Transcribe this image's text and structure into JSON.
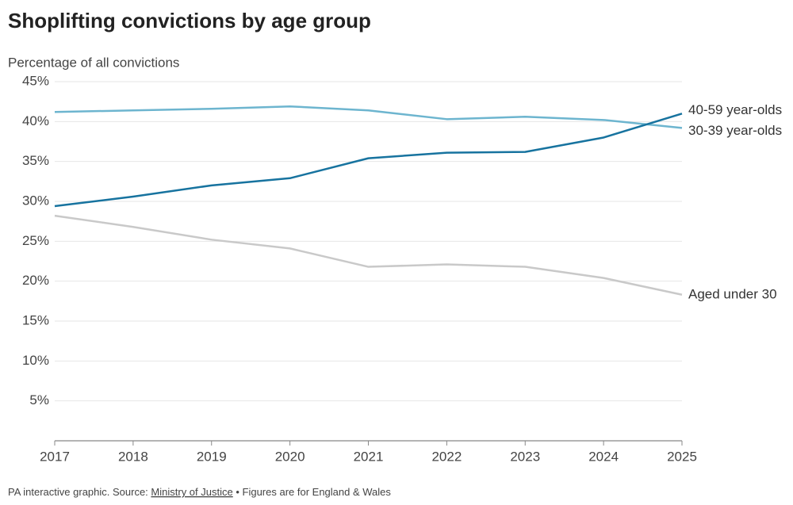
{
  "chart_data": {
    "type": "line",
    "title": "Shoplifting convictions by age group",
    "y_label": "Percentage of all convictions",
    "categories": [
      "2017",
      "2018",
      "2019",
      "2020",
      "2021",
      "2022",
      "2023",
      "2024",
      "2025"
    ],
    "series": [
      {
        "name": "30-39 year-olds",
        "color": "#6db5cf",
        "values": [
          41.2,
          41.4,
          41.6,
          41.9,
          41.4,
          40.3,
          40.6,
          40.2,
          39.2
        ]
      },
      {
        "name": "40-59 year-olds",
        "color": "#17739f",
        "values": [
          29.4,
          30.6,
          32.0,
          32.9,
          35.4,
          36.1,
          36.2,
          38.0,
          41.0
        ]
      },
      {
        "name": "Aged under 30",
        "color": "#c9c9c9",
        "values": [
          28.2,
          26.8,
          25.2,
          24.1,
          21.8,
          22.1,
          21.8,
          20.4,
          18.3
        ]
      }
    ],
    "ylim": [
      0,
      45
    ],
    "yticks": [
      {
        "value": 5,
        "label": "5%"
      },
      {
        "value": 10,
        "label": "10%"
      },
      {
        "value": 15,
        "label": "15%"
      },
      {
        "value": 20,
        "label": "20%"
      },
      {
        "value": 25,
        "label": "25%"
      },
      {
        "value": 30,
        "label": "30%"
      },
      {
        "value": 35,
        "label": "35%"
      },
      {
        "value": 40,
        "label": "40%"
      },
      {
        "value": 45,
        "label": "45%"
      }
    ],
    "grid": true,
    "footer": {
      "prefix": "PA interactive graphic. Source: ",
      "link": "Ministry of Justice",
      "suffix": " • Figures are for England & Wales"
    }
  }
}
